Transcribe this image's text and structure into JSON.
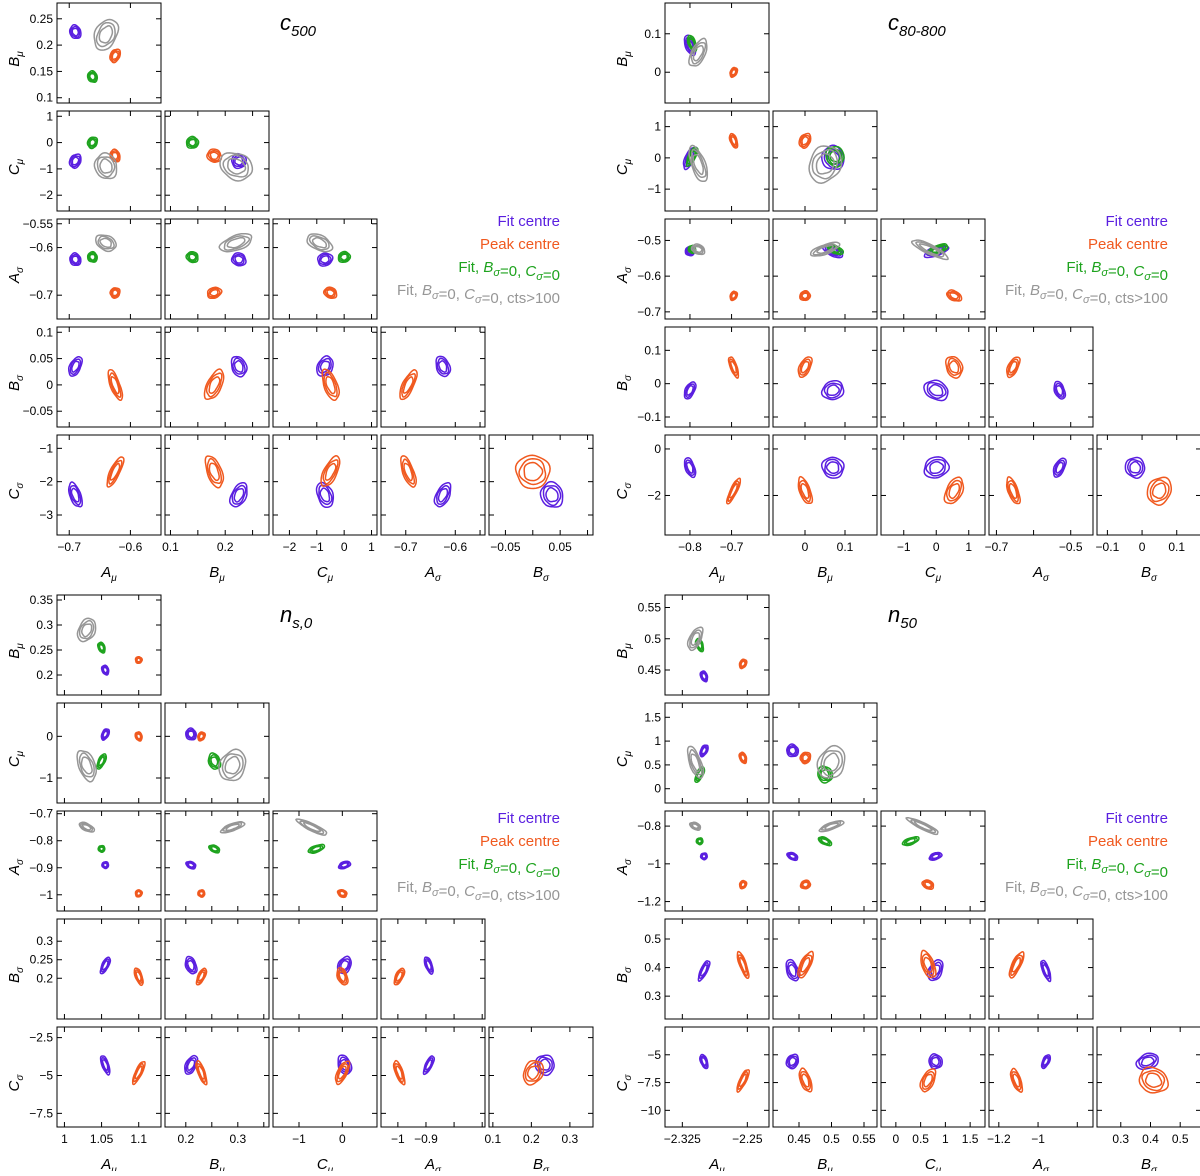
{
  "chart_data": [
    {
      "type": "corner-contour",
      "title": "c",
      "title_sub": "500",
      "params": [
        {
          "key": "Amu",
          "sym": "A",
          "sub": "μ",
          "lim": [
            -0.72,
            -0.55
          ],
          "ticks": [
            -0.7,
            -0.6
          ],
          "ticklabels": [
            "−0.7",
            "−0.6"
          ]
        },
        {
          "key": "Bmu",
          "sym": "B",
          "sub": "μ",
          "lim": [
            0.09,
            0.28
          ],
          "ticks": [
            0.1,
            0.15,
            0.2,
            0.25
          ],
          "ticklabels": [
            "0.1",
            "0.15",
            "0.2",
            "0.25"
          ],
          "xticks": [
            0.1,
            0.2
          ],
          "xticklabels": [
            "0.1",
            "0.2"
          ]
        },
        {
          "key": "Cmu",
          "sym": "C",
          "sub": "μ",
          "lim": [
            -2.6,
            1.2
          ],
          "ticks": [
            -2,
            -1,
            0,
            1
          ],
          "ticklabels": [
            "−2",
            "−1",
            "0",
            "1"
          ]
        },
        {
          "key": "Asig",
          "sym": "A",
          "sub": "σ",
          "lim": [
            -0.75,
            -0.54
          ],
          "ticks": [
            -0.7,
            -0.6,
            -0.55
          ],
          "ticklabels": [
            "−0.7",
            "−0.6",
            "−0.55"
          ],
          "xticks": [
            -0.7,
            -0.6
          ],
          "xticklabels": [
            "−0.7",
            "−0.6"
          ]
        },
        {
          "key": "Bsig",
          "sym": "B",
          "sub": "σ",
          "lim": [
            -0.08,
            0.11
          ],
          "ticks": [
            -0.05,
            0,
            0.05,
            0.1
          ],
          "ticklabels": [
            "−0.05",
            "0",
            "0.05",
            "0.1"
          ],
          "xticks": [
            -0.05,
            0.05
          ],
          "xticklabels": [
            "−0.05",
            "0.05"
          ]
        },
        {
          "key": "Csig",
          "sym": "C",
          "sub": "σ",
          "lim": [
            -3.6,
            -0.6
          ],
          "ticks": [
            -3,
            -2,
            -1
          ],
          "ticklabels": [
            "−3",
            "−2",
            "−1"
          ]
        }
      ],
      "series": [
        {
          "name": "Fit centre",
          "color": "#5a1fe0",
          "means": [
            -0.69,
            0.225,
            -0.7,
            -0.625,
            0.035,
            -2.4
          ],
          "sd": [
            0.008,
            0.012,
            0.25,
            0.012,
            0.018,
            0.35
          ]
        },
        {
          "name": "Peak centre",
          "color": "#f0591f",
          "means": [
            -0.625,
            0.18,
            -0.5,
            -0.695,
            0.0,
            -1.7
          ],
          "sd": [
            0.007,
            0.012,
            0.22,
            0.01,
            0.028,
            0.45
          ]
        },
        {
          "name": "Fit, B_σ=0, C_σ=0",
          "color": "#1ea31e",
          "means": [
            -0.662,
            0.14,
            0.0,
            -0.62,
            null,
            null
          ],
          "sd": [
            0.007,
            0.01,
            0.2,
            0.01,
            null,
            null
          ]
        },
        {
          "name": "Fit, B_σ=0, C_σ=0, cts>100",
          "color": "#969696",
          "means": [
            -0.64,
            0.22,
            -0.9,
            -0.59,
            null,
            null
          ],
          "sd": [
            0.016,
            0.028,
            0.45,
            0.014,
            null,
            null
          ]
        }
      ]
    },
    {
      "type": "corner-contour",
      "title": "c",
      "title_sub": "80-800",
      "params": [
        {
          "key": "Amu",
          "sym": "A",
          "sub": "μ",
          "lim": [
            -0.86,
            -0.61
          ],
          "ticks": [
            -0.8,
            -0.7
          ],
          "ticklabels": [
            "−0.8",
            "−0.7"
          ]
        },
        {
          "key": "Bmu",
          "sym": "B",
          "sub": "μ",
          "lim": [
            -0.08,
            0.18
          ],
          "ticks": [
            0,
            0.1
          ],
          "ticklabels": [
            "0",
            "0.1"
          ]
        },
        {
          "key": "Cmu",
          "sym": "C",
          "sub": "μ",
          "lim": [
            -1.7,
            1.5
          ],
          "ticks": [
            -1,
            0,
            1
          ],
          "ticklabels": [
            "−1",
            "0",
            "1"
          ]
        },
        {
          "key": "Asig",
          "sym": "A",
          "sub": "σ",
          "lim": [
            -0.72,
            -0.44
          ],
          "ticks": [
            -0.7,
            -0.6,
            -0.5
          ],
          "ticklabels": [
            "−0.7",
            "−0.6",
            "−0.5"
          ],
          "xticks": [
            -0.7,
            -0.5
          ],
          "xticklabels": [
            "−0.7",
            "−0.5"
          ]
        },
        {
          "key": "Bsig",
          "sym": "B",
          "sub": "σ",
          "lim": [
            -0.13,
            0.17
          ],
          "ticks": [
            -0.1,
            0,
            0.1
          ],
          "ticklabels": [
            "−0.1",
            "0",
            "0.1"
          ]
        },
        {
          "key": "Csig",
          "sym": "C",
          "sub": "σ",
          "lim": [
            -3.7,
            0.6
          ],
          "ticks": [
            -2,
            0
          ],
          "ticklabels": [
            "−2",
            "0"
          ]
        }
      ],
      "series": [
        {
          "name": "Fit centre",
          "color": "#5a1fe0",
          "means": [
            -0.8,
            0.07,
            0.0,
            -0.53,
            -0.02,
            -0.8
          ],
          "sd": [
            0.01,
            0.025,
            0.35,
            0.012,
            0.025,
            0.4
          ]
        },
        {
          "name": "Peak centre",
          "color": "#f0591f",
          "means": [
            -0.695,
            0.0,
            0.55,
            -0.655,
            0.05,
            -1.8
          ],
          "sd": [
            0.007,
            0.012,
            0.22,
            0.012,
            0.03,
            0.55
          ]
        },
        {
          "name": "Fit, B_σ=0, C_σ=0",
          "color": "#1ea31e",
          "means": [
            -0.795,
            0.075,
            0.05,
            -0.525,
            null,
            null
          ],
          "sd": [
            0.008,
            0.02,
            0.3,
            0.01,
            null,
            null
          ]
        },
        {
          "name": "Fit, B_σ=0, C_σ=0, cts>100",
          "color": "#969696",
          "means": [
            -0.78,
            0.05,
            -0.2,
            -0.525,
            null,
            null
          ],
          "sd": [
            0.015,
            0.035,
            0.55,
            0.012,
            null,
            null
          ]
        }
      ]
    },
    {
      "type": "corner-contour",
      "title": "n",
      "title_sub": "s,0",
      "params": [
        {
          "key": "Amu",
          "sym": "A",
          "sub": "μ",
          "lim": [
            0.99,
            1.13
          ],
          "ticks": [
            1,
            1.05,
            1.1
          ],
          "ticklabels": [
            "1",
            "1.05",
            "1.1"
          ]
        },
        {
          "key": "Bmu",
          "sym": "B",
          "sub": "μ",
          "lim": [
            0.16,
            0.36
          ],
          "ticks": [
            0.2,
            0.25,
            0.3,
            0.35
          ],
          "ticklabels": [
            "0.2",
            "0.25",
            "0.3",
            "0.35"
          ],
          "xticks": [
            0.2,
            0.3
          ],
          "xticklabels": [
            "0.2",
            "0.3"
          ]
        },
        {
          "key": "Cmu",
          "sym": "C",
          "sub": "μ",
          "lim": [
            -1.6,
            0.8
          ],
          "ticks": [
            -1,
            0
          ],
          "ticklabels": [
            "−1",
            "0"
          ]
        },
        {
          "key": "Asig",
          "sym": "A",
          "sub": "σ",
          "lim": [
            -1.06,
            -0.69
          ],
          "ticks": [
            -1,
            -0.9,
            -0.8,
            -0.7
          ],
          "ticklabels": [
            "−1",
            "−0.9",
            "−0.8",
            "−0.7"
          ],
          "xticks": [
            -1,
            -0.9
          ],
          "xticklabels": [
            "−1",
            "−0.9"
          ]
        },
        {
          "key": "Bsig",
          "sym": "B",
          "sub": "σ",
          "lim": [
            0.09,
            0.36
          ],
          "ticks": [
            0.1,
            0.2,
            0.3
          ],
          "ticklabels": [
            "0.1",
            "0.2",
            "0.3"
          ],
          "yticks": [
            0.2,
            0.25,
            0.3
          ],
          "yticklabels": [
            "0.2",
            "0.25",
            "0.3"
          ]
        },
        {
          "key": "Csig",
          "sym": "C",
          "sub": "σ",
          "lim": [
            -8.4,
            -1.8
          ],
          "ticks": [
            -7.5,
            -5,
            -2.5
          ],
          "ticklabels": [
            "−7.5",
            "−5",
            "−2.5"
          ]
        }
      ],
      "series": [
        {
          "name": "Fit centre",
          "color": "#5a1fe0",
          "means": [
            1.055,
            0.21,
            0.05,
            -0.89,
            0.235,
            -4.3
          ],
          "sd": [
            0.003,
            0.009,
            0.13,
            0.01,
            0.022,
            0.6
          ]
        },
        {
          "name": "Peak centre",
          "color": "#f0591f",
          "means": [
            1.1,
            0.23,
            0.0,
            -0.995,
            0.205,
            -4.8
          ],
          "sd": [
            0.003,
            0.006,
            0.1,
            0.012,
            0.022,
            0.75
          ]
        },
        {
          "name": "Fit, B_σ=0, C_σ=0",
          "color": "#1ea31e",
          "means": [
            1.05,
            0.255,
            -0.6,
            -0.83,
            null,
            null
          ],
          "sd": [
            0.003,
            0.01,
            0.18,
            0.01,
            null,
            null
          ]
        },
        {
          "name": "Fit, B_σ=0, C_σ=0, cts>100",
          "color": "#969696",
          "means": [
            1.03,
            0.29,
            -0.7,
            -0.75,
            null,
            null
          ],
          "sd": [
            0.01,
            0.022,
            0.35,
            0.012,
            null,
            null
          ]
        }
      ]
    },
    {
      "type": "corner-contour",
      "title": "n",
      "title_sub": "50",
      "params": [
        {
          "key": "Amu",
          "sym": "A",
          "sub": "μ",
          "lim": [
            -2.345,
            -2.225
          ],
          "ticks": [
            -2.325,
            -2.25
          ],
          "ticklabels": [
            "−2.325",
            "−2.25"
          ]
        },
        {
          "key": "Bmu",
          "sym": "B",
          "sub": "μ",
          "lim": [
            0.41,
            0.57
          ],
          "ticks": [
            0.45,
            0.5,
            0.55
          ],
          "ticklabels": [
            "0.45",
            "0.5",
            "0.55"
          ]
        },
        {
          "key": "Cmu",
          "sym": "C",
          "sub": "μ",
          "lim": [
            -0.3,
            1.8
          ],
          "ticks": [
            0,
            0.5,
            1,
            1.5
          ],
          "ticklabels": [
            "0",
            "0.5",
            "1",
            "1.5"
          ]
        },
        {
          "key": "Asig",
          "sym": "A",
          "sub": "σ",
          "lim": [
            -1.25,
            -0.72
          ],
          "ticks": [
            -1.2,
            -1,
            -0.8
          ],
          "ticklabels": [
            "−1.2",
            "−1",
            "−0.8"
          ],
          "xticks": [
            -1.2,
            -1
          ],
          "xticklabels": [
            "−1.2",
            "−1"
          ]
        },
        {
          "key": "Bsig",
          "sym": "B",
          "sub": "σ",
          "lim": [
            0.22,
            0.57
          ],
          "ticks": [
            0.3,
            0.4,
            0.5
          ],
          "ticklabels": [
            "0.3",
            "0.4",
            "0.5"
          ],
          "xticks": [
            0.3,
            0.4,
            0.5
          ],
          "xticklabels": [
            "0.3",
            "0.4",
            "0.5"
          ]
        },
        {
          "key": "Csig",
          "sym": "C",
          "sub": "σ",
          "lim": [
            -11.5,
            -2.5
          ],
          "ticks": [
            -10,
            -7.5,
            -5
          ],
          "ticklabels": [
            "−10",
            "−7.5",
            "−5"
          ]
        }
      ],
      "series": [
        {
          "name": "Fit centre",
          "color": "#5a1fe0",
          "means": [
            -2.3,
            0.44,
            0.8,
            -0.96,
            0.39,
            -5.6
          ],
          "sd": [
            0.003,
            0.008,
            0.12,
            0.012,
            0.035,
            0.6
          ]
        },
        {
          "name": "Peak centre",
          "color": "#f0591f",
          "means": [
            -2.255,
            0.46,
            0.65,
            -1.11,
            0.41,
            -7.3
          ],
          "sd": [
            0.002,
            0.007,
            0.11,
            0.02,
            0.045,
            1.0
          ]
        },
        {
          "name": "Fit, B_σ=0, C_σ=0",
          "color": "#1ea31e",
          "means": [
            -2.305,
            0.49,
            0.3,
            -0.88,
            null,
            null
          ],
          "sd": [
            0.003,
            0.01,
            0.16,
            0.012,
            null,
            null
          ]
        },
        {
          "name": "Fit, B_σ=0, C_σ=0, cts>100",
          "color": "#969696",
          "means": [
            -2.31,
            0.5,
            0.55,
            -0.8,
            null,
            null
          ],
          "sd": [
            0.006,
            0.018,
            0.32,
            0.014,
            null,
            null
          ]
        }
      ]
    }
  ],
  "legend": {
    "items": [
      {
        "label": "Fit centre",
        "color": "#5a1fe0"
      },
      {
        "label": "Peak centre",
        "color": "#f0591f"
      },
      {
        "label": "Fit, B_σ=0, C_σ=0",
        "color": "#1ea31e"
      },
      {
        "label": "Fit, B_σ=0, C_σ=0, cts>100",
        "color": "#969696"
      }
    ]
  }
}
